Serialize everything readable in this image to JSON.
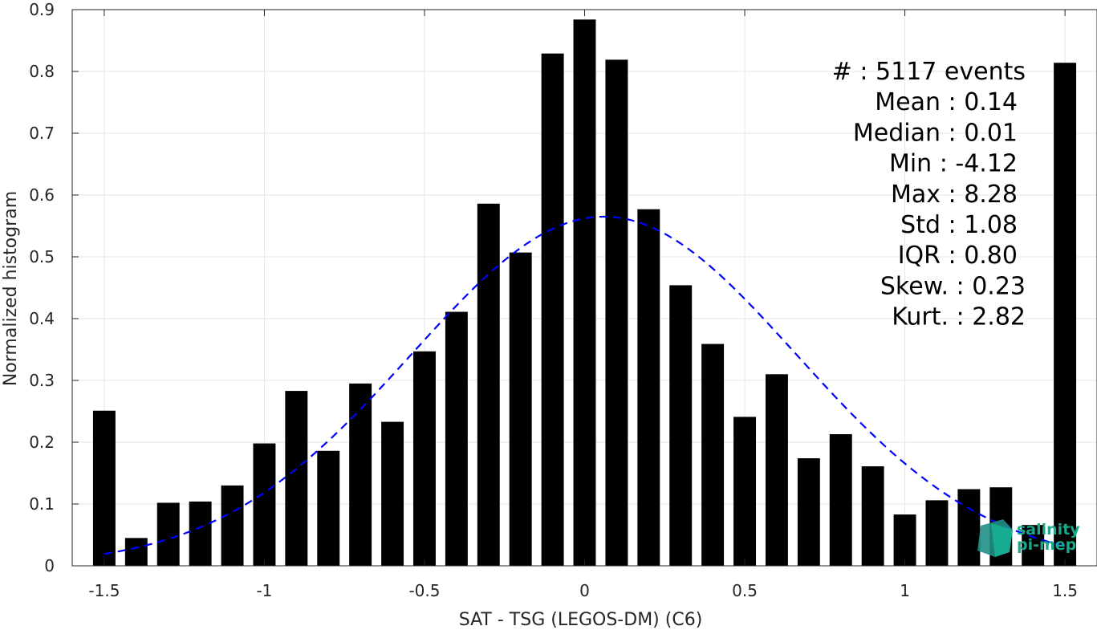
{
  "chart_data": {
    "type": "bar",
    "xlabel": "SAT - TSG (LEGOS-DM) (C6)",
    "ylabel": "Normalized histogram",
    "xlim": [
      -1.6,
      1.6
    ],
    "ylim": [
      0,
      0.9
    ],
    "x_ticks": [
      -1.5,
      -1,
      -0.5,
      0,
      0.5,
      1,
      1.5
    ],
    "x_tick_labels": [
      "-1.5",
      "-1",
      "-0.5",
      "0",
      "0.5",
      "1",
      "1.5"
    ],
    "y_ticks": [
      0,
      0.1,
      0.2,
      0.3,
      0.4,
      0.5,
      0.6,
      0.7,
      0.8,
      0.9
    ],
    "y_tick_labels": [
      "0",
      "0.1",
      "0.2",
      "0.3",
      "0.4",
      "0.5",
      "0.6",
      "0.7",
      "0.8",
      "0.9"
    ],
    "grid": true,
    "bar_color": "#000000",
    "bin_width": 0.1,
    "bar_width": 0.07,
    "bins": [
      -1.5,
      -1.4,
      -1.3,
      -1.2,
      -1.1,
      -1.0,
      -0.9,
      -0.8,
      -0.7,
      -0.6,
      -0.5,
      -0.4,
      -0.3,
      -0.2,
      -0.1,
      0.0,
      0.1,
      0.2,
      0.3,
      0.4,
      0.5,
      0.6,
      0.7,
      0.8,
      0.9,
      1.0,
      1.1,
      1.2,
      1.3,
      1.4,
      1.5
    ],
    "values": [
      0.251,
      0.045,
      0.102,
      0.104,
      0.13,
      0.198,
      0.283,
      0.186,
      0.295,
      0.233,
      0.347,
      0.411,
      0.586,
      0.507,
      0.829,
      0.884,
      0.819,
      0.577,
      0.454,
      0.359,
      0.241,
      0.31,
      0.174,
      0.213,
      0.161,
      0.083,
      0.106,
      0.124,
      0.127,
      0.066,
      0.814
    ],
    "fit_curve": {
      "type": "gaussian",
      "mean": 0.06,
      "sigma": 0.6,
      "amplitude": 0.565,
      "x_range": [
        -1.5,
        1.5
      ],
      "color": "#0000ff",
      "style": "dashed"
    },
    "stats": [
      "#  : 5117 events",
      "Mean : 0.14",
      "Median : 0.01",
      "Min : -4.12",
      "Max : 8.28",
      "Std : 1.08",
      "IQR : 0.80",
      "Skew. : 0.23",
      "Kurt. : 2.82"
    ]
  },
  "logo": {
    "line1": "salinity",
    "line2": "pi-mep",
    "color": "#18a88c"
  }
}
